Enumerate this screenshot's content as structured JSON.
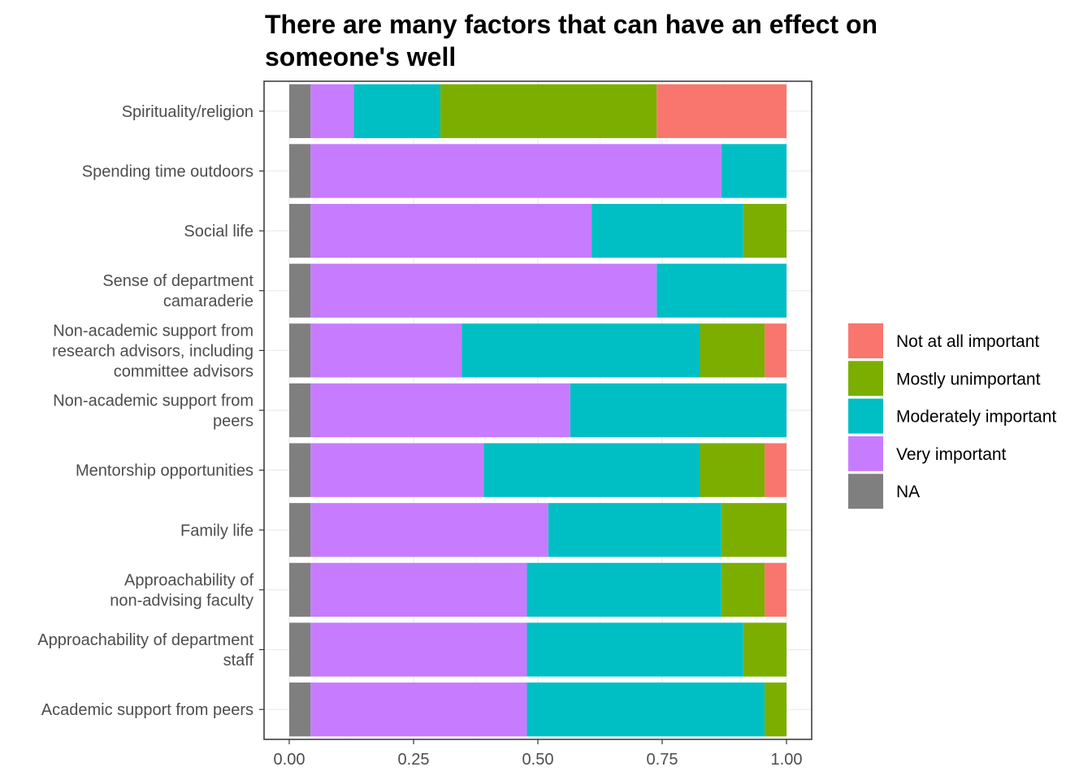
{
  "chart_data": {
    "type": "bar",
    "orientation": "horizontal",
    "stacked": true,
    "title_lines": [
      "There are many factors that can have an effect on",
      "someone's well"
    ],
    "xlabel": "",
    "ylabel": "",
    "xlim": [
      0,
      1
    ],
    "x_ticks": [
      "0.00",
      "0.25",
      "0.50",
      "0.75",
      "1.00"
    ],
    "x_tick_values": [
      0,
      0.25,
      0.5,
      0.75,
      1
    ],
    "grid": true,
    "legend_position": "right",
    "categories": [
      [
        "Spirituality/religion"
      ],
      [
        "Spending time outdoors"
      ],
      [
        "Social life"
      ],
      [
        "Sense of department",
        "camaraderie"
      ],
      [
        "Non-academic support from",
        "research advisors, including",
        "committee advisors"
      ],
      [
        "Non-academic support from",
        "peers"
      ],
      [
        "Mentorship opportunities"
      ],
      [
        "Family life"
      ],
      [
        "Approachability of",
        "non-advising faculty"
      ],
      [
        "Approachability of department",
        "staff"
      ],
      [
        "Academic support from peers"
      ]
    ],
    "stack_order": [
      "NA",
      "Very important",
      "Moderately important",
      "Mostly unimportant",
      "Not at all important"
    ],
    "series": [
      {
        "name": "NA",
        "color": "#7f7f7f",
        "values": [
          0.043,
          0.043,
          0.043,
          0.043,
          0.043,
          0.043,
          0.043,
          0.043,
          0.043,
          0.043,
          0.043
        ]
      },
      {
        "name": "Very important",
        "color": "#c77cff",
        "values": [
          0.087,
          0.826,
          0.565,
          0.696,
          0.304,
          0.522,
          0.348,
          0.478,
          0.435,
          0.435,
          0.435
        ]
      },
      {
        "name": "Moderately important",
        "color": "#00bfc4",
        "values": [
          0.174,
          0.131,
          0.305,
          0.261,
          0.479,
          0.435,
          0.435,
          0.348,
          0.391,
          0.435,
          0.478
        ]
      },
      {
        "name": "Mostly unimportant",
        "color": "#7cae00",
        "values": [
          0.435,
          0,
          0.087,
          0,
          0.13,
          0,
          0.13,
          0.131,
          0.087,
          0.087,
          0.044
        ]
      },
      {
        "name": "Not at all important",
        "color": "#f8766d",
        "values": [
          0.261,
          0,
          0,
          0,
          0.044,
          0,
          0.044,
          0,
          0.044,
          0,
          0
        ]
      }
    ],
    "legend_order": [
      "Not at all important",
      "Mostly unimportant",
      "Moderately important",
      "Very important",
      "NA"
    ]
  }
}
